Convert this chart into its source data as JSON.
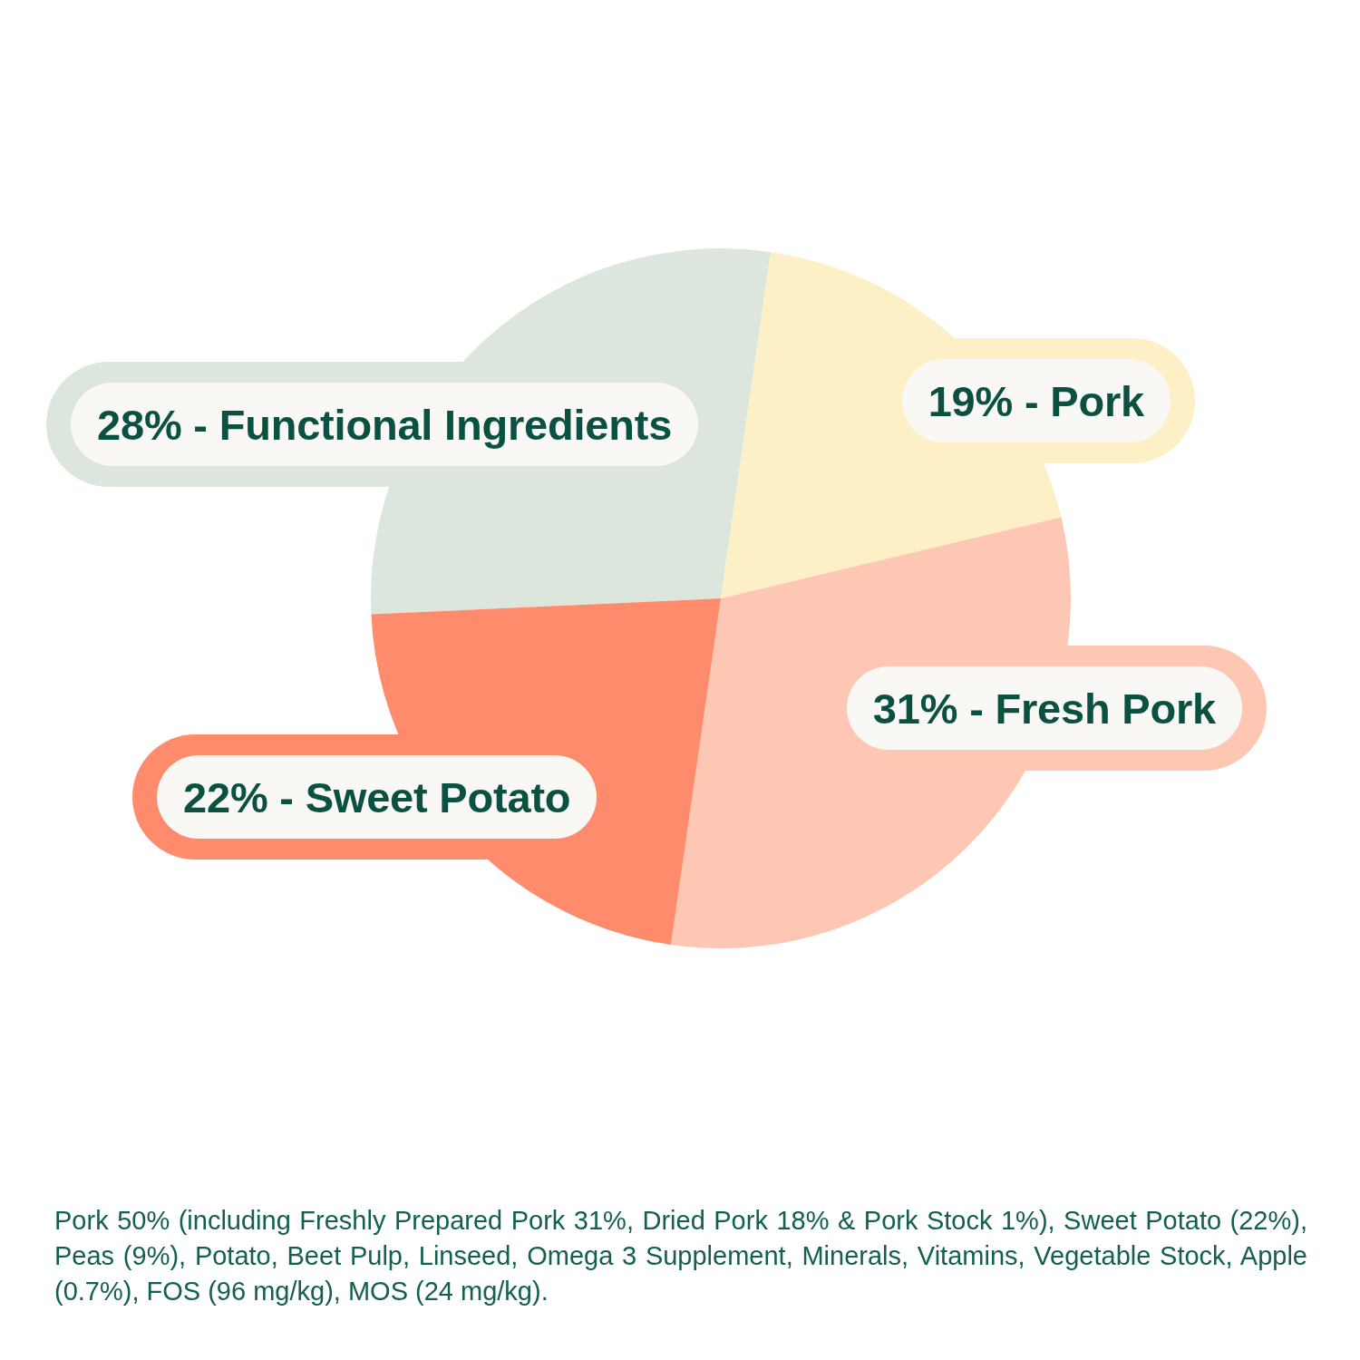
{
  "chart_data": {
    "type": "pie",
    "categories": [
      "28% - Functional Ingredients",
      "19% - Pork",
      "31% - Fresh Pork",
      "22% - Sweet Potato"
    ],
    "values": [
      28,
      19,
      31,
      22
    ],
    "colors": [
      "#dce6dc",
      "#fdf0c6",
      "#fec7b4",
      "#ff8b6d"
    ],
    "annotations": [
      "Pork 50% (including Freshly Prepared Pork 31%, Dried Pork 18% & Pork Stock 1%), Sweet Potato (22%), Peas (9%), Potato, Beet Pulp, Linseed, Omega 3 Supplement, Minerals, Vitamins, Vegetable Stock, Apple (0.7%), FOS (96 mg/kg), MOS (24 mg/kg)."
    ]
  }
}
